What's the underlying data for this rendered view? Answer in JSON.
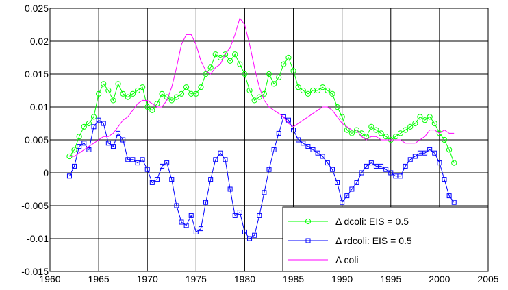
{
  "chart_data": {
    "type": "line",
    "title": "",
    "xlabel": "",
    "ylabel": "",
    "xlim": [
      1960,
      2005
    ],
    "ylim": [
      -0.015,
      0.025
    ],
    "x_ticks": [
      "1960",
      "1965",
      "1970",
      "1975",
      "1980",
      "1985",
      "1990",
      "1995",
      "2000",
      "2005"
    ],
    "y_ticks": [
      "-0.015",
      "-0.01",
      "-0.005",
      "0",
      "0.005",
      "0.01",
      "0.015",
      "0.02",
      "0.025"
    ],
    "grid": true,
    "legend_position": "bottom-right",
    "series": [
      {
        "name": "Δ dcoli: EIS = 0.5",
        "color": "#00ff00",
        "marker": "circle",
        "x": [
          1962.0,
          1962.5,
          1963.0,
          1963.5,
          1964.0,
          1964.5,
          1965.0,
          1965.5,
          1966.0,
          1966.5,
          1967.0,
          1967.5,
          1968.0,
          1968.5,
          1969.0,
          1969.5,
          1970.0,
          1970.5,
          1971.0,
          1971.5,
          1972.0,
          1972.5,
          1973.0,
          1973.5,
          1974.0,
          1974.5,
          1975.0,
          1975.5,
          1976.0,
          1976.5,
          1977.0,
          1977.5,
          1978.0,
          1978.5,
          1979.0,
          1979.5,
          1980.0,
          1980.5,
          1981.0,
          1981.5,
          1982.0,
          1982.5,
          1983.0,
          1983.5,
          1984.0,
          1984.5,
          1985.0,
          1985.5,
          1986.0,
          1986.5,
          1987.0,
          1987.5,
          1988.0,
          1988.5,
          1989.0,
          1989.5,
          1990.0,
          1990.5,
          1991.0,
          1991.5,
          1992.0,
          1992.5,
          1993.0,
          1993.5,
          1994.0,
          1994.5,
          1995.0,
          1995.5,
          1996.0,
          1996.5,
          1997.0,
          1997.5,
          1998.0,
          1998.5,
          1999.0,
          1999.5,
          2000.0,
          2000.5,
          2001.0,
          2001.5
        ],
        "y": [
          0.0025,
          0.0035,
          0.0055,
          0.007,
          0.0075,
          0.0085,
          0.012,
          0.0135,
          0.0125,
          0.011,
          0.0135,
          0.012,
          0.0115,
          0.012,
          0.0125,
          0.013,
          0.01,
          0.0095,
          0.0105,
          0.012,
          0.0115,
          0.011,
          0.0115,
          0.012,
          0.013,
          0.012,
          0.012,
          0.013,
          0.015,
          0.016,
          0.018,
          0.0175,
          0.018,
          0.017,
          0.018,
          0.0165,
          0.015,
          0.0125,
          0.011,
          0.0115,
          0.012,
          0.015,
          0.0135,
          0.0145,
          0.0165,
          0.0175,
          0.0155,
          0.013,
          0.0125,
          0.012,
          0.0125,
          0.0125,
          0.013,
          0.0125,
          0.012,
          0.01,
          0.0085,
          0.0065,
          0.006,
          0.0065,
          0.006,
          0.0055,
          0.007,
          0.0065,
          0.006,
          0.0055,
          0.005,
          0.0055,
          0.006,
          0.0065,
          0.007,
          0.0075,
          0.0085,
          0.008,
          0.0085,
          0.0075,
          0.006,
          0.005,
          0.0035,
          0.0015
        ]
      },
      {
        "name": "Δ rdcoli: EIS = 0.5",
        "color": "#0000ff",
        "marker": "square",
        "x": [
          1962.0,
          1962.5,
          1963.0,
          1963.5,
          1964.0,
          1964.5,
          1965.0,
          1965.5,
          1966.0,
          1966.5,
          1967.0,
          1967.5,
          1968.0,
          1968.5,
          1969.0,
          1969.5,
          1970.0,
          1970.5,
          1971.0,
          1971.5,
          1972.0,
          1972.5,
          1973.0,
          1973.5,
          1974.0,
          1974.5,
          1975.0,
          1975.5,
          1976.0,
          1976.5,
          1977.0,
          1977.5,
          1978.0,
          1978.5,
          1979.0,
          1979.5,
          1980.0,
          1980.5,
          1981.0,
          1981.5,
          1982.0,
          1982.5,
          1983.0,
          1983.5,
          1984.0,
          1984.5,
          1985.0,
          1985.5,
          1986.0,
          1986.5,
          1987.0,
          1987.5,
          1988.0,
          1988.5,
          1989.0,
          1989.5,
          1990.0,
          1990.5,
          1991.0,
          1991.5,
          1992.0,
          1992.5,
          1993.0,
          1993.5,
          1994.0,
          1994.5,
          1995.0,
          1995.5,
          1996.0,
          1996.5,
          1997.0,
          1997.5,
          1998.0,
          1998.5,
          1999.0,
          1999.5,
          2000.0,
          2000.5,
          2001.0,
          2001.5
        ],
        "y": [
          -0.0005,
          0.001,
          0.004,
          0.0045,
          0.0035,
          0.007,
          0.008,
          0.0075,
          0.0045,
          0.004,
          0.006,
          0.005,
          0.002,
          0.002,
          0.0015,
          0.002,
          0.0005,
          -0.0015,
          -0.001,
          0.001,
          0.0015,
          -0.001,
          -0.005,
          -0.0075,
          -0.008,
          -0.0065,
          -0.009,
          -0.0085,
          -0.0045,
          -0.001,
          0.002,
          0.003,
          0.002,
          -0.0025,
          -0.0065,
          -0.006,
          -0.009,
          -0.01,
          -0.0095,
          -0.0065,
          -0.003,
          0.0005,
          0.0035,
          0.006,
          0.0085,
          0.008,
          0.0065,
          0.005,
          0.0045,
          0.004,
          0.0035,
          0.003,
          0.0025,
          0.0015,
          0.0005,
          -0.0015,
          -0.0045,
          -0.0035,
          -0.0025,
          -0.0015,
          0.0,
          0.001,
          0.0015,
          0.001,
          0.001,
          0.0005,
          0.0,
          -0.0005,
          -0.0005,
          0.001,
          0.002,
          0.0025,
          0.003,
          0.003,
          0.0035,
          0.003,
          0.0015,
          -0.001,
          -0.0035,
          -0.0045
        ]
      },
      {
        "name": "Δ coli",
        "color": "#ff00ff",
        "marker": "none",
        "x": [
          1962.0,
          1962.5,
          1963.0,
          1963.5,
          1964.0,
          1964.5,
          1965.0,
          1965.5,
          1966.0,
          1966.5,
          1967.0,
          1967.5,
          1968.0,
          1968.5,
          1969.0,
          1969.5,
          1970.0,
          1970.5,
          1971.0,
          1971.5,
          1972.0,
          1972.5,
          1973.0,
          1973.5,
          1974.0,
          1974.5,
          1975.0,
          1975.5,
          1976.0,
          1976.5,
          1977.0,
          1977.5,
          1978.0,
          1978.5,
          1979.0,
          1979.5,
          1980.0,
          1980.5,
          1981.0,
          1981.5,
          1982.0,
          1982.5,
          1983.0,
          1983.5,
          1984.0,
          1984.5,
          1985.0,
          1985.5,
          1986.0,
          1986.5,
          1987.0,
          1987.5,
          1988.0,
          1988.5,
          1989.0,
          1989.5,
          1990.0,
          1990.5,
          1991.0,
          1991.5,
          1992.0,
          1992.5,
          1993.0,
          1993.5,
          1994.0,
          1994.5,
          1995.0,
          1995.5,
          1996.0,
          1996.5,
          1997.0,
          1997.5,
          1998.0,
          1998.5,
          1999.0,
          1999.5,
          2000.0,
          2000.5,
          2001.0,
          2001.5
        ],
        "y": [
          0.0025,
          0.0025,
          0.003,
          0.0035,
          0.004,
          0.0045,
          0.005,
          0.0055,
          0.0055,
          0.006,
          0.007,
          0.008,
          0.0085,
          0.0095,
          0.0105,
          0.011,
          0.011,
          0.0105,
          0.01,
          0.01,
          0.011,
          0.013,
          0.016,
          0.0195,
          0.021,
          0.021,
          0.0195,
          0.017,
          0.0155,
          0.015,
          0.016,
          0.0165,
          0.018,
          0.019,
          0.021,
          0.0235,
          0.0225,
          0.0195,
          0.016,
          0.013,
          0.011,
          0.01,
          0.0095,
          0.009,
          0.0085,
          0.0075,
          0.007,
          0.0075,
          0.008,
          0.0085,
          0.009,
          0.0095,
          0.01,
          0.01,
          0.0095,
          0.0085,
          0.0075,
          0.007,
          0.0065,
          0.0065,
          0.0055,
          0.005,
          0.0055,
          0.0055,
          0.005,
          0.005,
          0.005,
          0.005,
          0.005,
          0.0045,
          0.0045,
          0.0045,
          0.005,
          0.0055,
          0.0065,
          0.0065,
          0.006,
          0.0065,
          0.006,
          0.006
        ]
      }
    ]
  }
}
